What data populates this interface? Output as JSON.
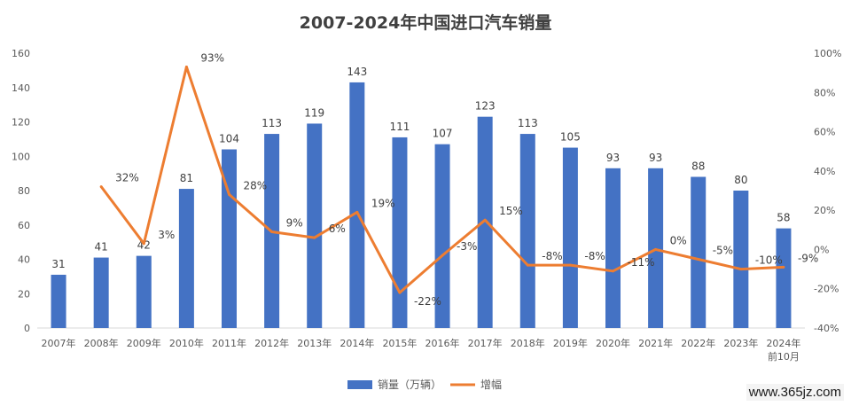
{
  "chart_data": {
    "type": "bar",
    "title": "2007-2024年中国进口汽车销量",
    "categories": [
      "2007年",
      "2008年",
      "2009年",
      "2010年",
      "2011年",
      "2012年",
      "2013年",
      "2014年",
      "2015年",
      "2016年",
      "2017年",
      "2018年",
      "2019年",
      "2020年",
      "2021年",
      "2022年",
      "2023年",
      "2024年\n前10月"
    ],
    "category_lines": [
      [
        "2007年"
      ],
      [
        "2008年"
      ],
      [
        "2009年"
      ],
      [
        "2010年"
      ],
      [
        "2011年"
      ],
      [
        "2012年"
      ],
      [
        "2013年"
      ],
      [
        "2014年"
      ],
      [
        "2015年"
      ],
      [
        "2016年"
      ],
      [
        "2017年"
      ],
      [
        "2018年"
      ],
      [
        "2019年"
      ],
      [
        "2020年"
      ],
      [
        "2021年"
      ],
      [
        "2022年"
      ],
      [
        "2023年"
      ],
      [
        "2024年",
        "前10月"
      ]
    ],
    "series": [
      {
        "name": "销量（万辆）",
        "type": "bar",
        "axis": "left",
        "color": "#4472c4",
        "values": [
          31,
          41,
          42,
          81,
          104,
          113,
          119,
          143,
          111,
          107,
          123,
          113,
          105,
          93,
          93,
          88,
          80,
          58
        ],
        "labels": [
          "31",
          "41",
          "42",
          "81",
          "104",
          "113",
          "119",
          "143",
          "111",
          "107",
          "123",
          "113",
          "105",
          "93",
          "93",
          "88",
          "80",
          "58"
        ]
      },
      {
        "name": "增幅",
        "type": "line",
        "axis": "right",
        "color": "#ed7d31",
        "values": [
          null,
          32,
          3,
          93,
          28,
          9,
          6,
          19,
          -22,
          -3,
          15,
          -8,
          -8,
          -11,
          0,
          -5,
          -10,
          -9
        ],
        "labels": [
          null,
          "32%",
          "3%",
          "93%",
          "28%",
          "9%",
          "6%",
          "19%",
          "-22%",
          "-3%",
          "15%",
          "-8%",
          "-8%",
          "-11%",
          "0%",
          "-5%",
          "-10%",
          "-9%"
        ]
      }
    ],
    "y_left": {
      "ylim": [
        0,
        160
      ],
      "ticks": [
        "0",
        "20",
        "40",
        "60",
        "80",
        "100",
        "120",
        "140",
        "160"
      ]
    },
    "y_right": {
      "ylim": [
        -40,
        100
      ],
      "ticks": [
        "-40%",
        "-20%",
        "0%",
        "20%",
        "40%",
        "60%",
        "80%",
        "100%"
      ]
    },
    "grid": false,
    "legend_position": "bottom"
  },
  "watermark": "www.365jz.com"
}
